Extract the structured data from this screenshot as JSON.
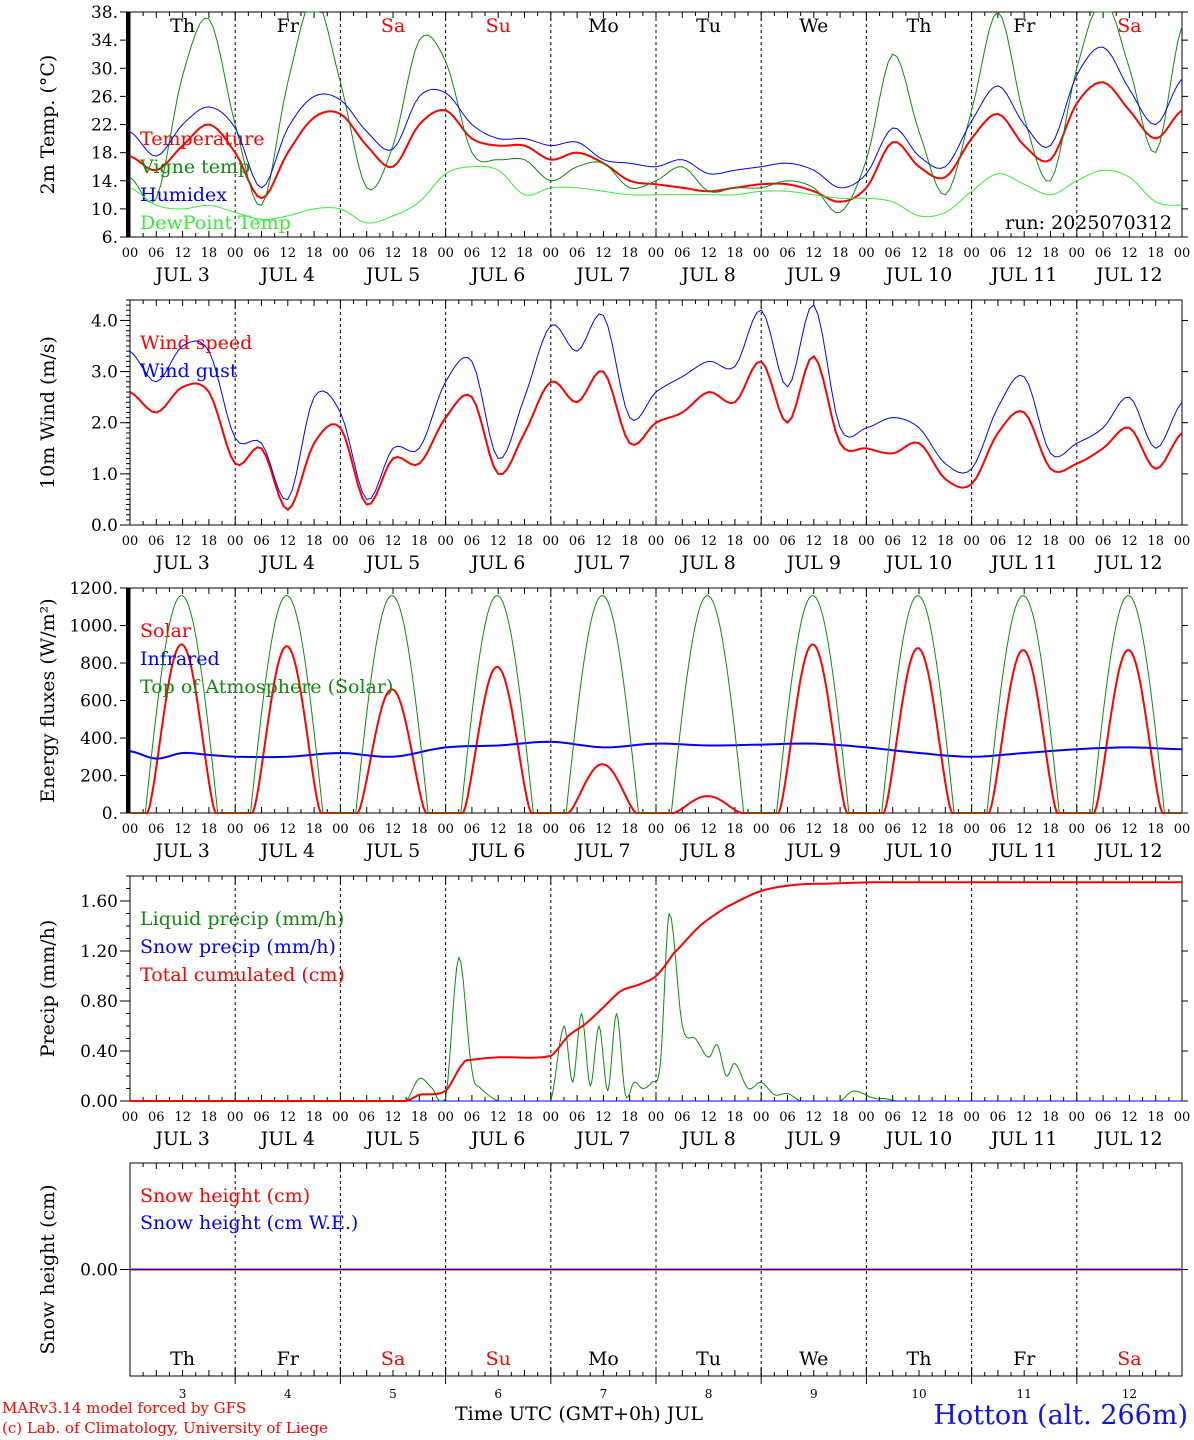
{
  "footer": {
    "model_credit": "MARv3.14 model forced by GFS",
    "lab_credit": "(c) Lab. of Climatology, University of Liege",
    "x_axis_title": "Time UTC (GMT+0h) JUL",
    "station": "Hotton (alt. 266m)"
  },
  "colors": {
    "red": "#ff0000",
    "blue": "#0000ff",
    "dark_green": "#118811",
    "light_green": "#33ee33",
    "black": "#000000"
  },
  "chart_data": [
    {
      "type": "line",
      "ylabel": "2m Temp. (°C)",
      "ylim": [
        6,
        38
      ],
      "yticks": [
        6,
        10,
        14,
        18,
        22,
        26,
        30,
        34,
        38
      ],
      "ytick_labels": [
        "6.",
        "10.",
        "14.",
        "18.",
        "22.",
        "26.",
        "30.",
        "34.",
        "38."
      ],
      "day_labels": [
        "Th",
        "Fr",
        "Sa",
        "Su",
        "Mo",
        "Tu",
        "We",
        "Th",
        "Fr",
        "Sa"
      ],
      "day_label_colors": [
        "#000000",
        "#000000",
        "#ff0000",
        "#ff0000",
        "#000000",
        "#000000",
        "#000000",
        "#000000",
        "#000000",
        "#ff0000"
      ],
      "annotation": "run: 2025070312",
      "x_hours": [
        0,
        6,
        12,
        18,
        24,
        30,
        36,
        42,
        48,
        54,
        60,
        66,
        72,
        78,
        84,
        90,
        96,
        102,
        108,
        114,
        120,
        126,
        132,
        138,
        144,
        150,
        156,
        162,
        168,
        174,
        180,
        186,
        192,
        198,
        204,
        210,
        216,
        222,
        228,
        234,
        240
      ],
      "series": [
        {
          "name": "Temperature",
          "color": "#ff0000",
          "width": 2,
          "values": [
            17.5,
            15.5,
            19,
            22,
            18,
            11.5,
            18,
            23,
            23.5,
            19,
            16,
            22,
            24,
            20,
            19,
            19,
            17,
            18,
            16.5,
            14,
            13.5,
            13,
            12.5,
            13,
            13.5,
            13.5,
            12.5,
            11,
            13,
            19.5,
            16,
            14.5,
            20,
            23.5,
            19,
            17,
            25,
            28,
            24,
            20,
            24
          ]
        },
        {
          "name": "Vigne temp",
          "color": "#118811",
          "width": 1,
          "values": [
            14.5,
            11.5,
            29,
            37,
            22,
            10.5,
            28,
            40,
            28,
            13,
            19,
            34,
            31,
            18,
            17,
            17,
            14,
            16,
            16.5,
            13,
            14,
            16,
            12.5,
            13,
            13,
            14,
            13,
            9.5,
            17,
            32,
            21,
            12,
            24,
            38,
            23,
            14,
            30,
            40,
            30,
            18,
            36
          ]
        },
        {
          "name": "Humidex",
          "color": "#0000ff",
          "width": 1,
          "values": [
            21,
            17.5,
            22,
            24.5,
            21.5,
            13,
            21.5,
            26,
            25.5,
            21,
            18.5,
            26,
            26.5,
            22,
            20,
            20,
            19,
            19.5,
            17,
            16.5,
            16,
            17,
            15,
            15.5,
            16,
            16.5,
            15.5,
            13,
            15,
            21.5,
            17.5,
            16,
            22.5,
            27.5,
            22,
            19,
            29,
            33,
            27,
            22,
            28.5
          ]
        },
        {
          "name": "DewPoint Temp",
          "color": "#33ee33",
          "width": 1,
          "values": [
            13,
            10.5,
            10,
            10.5,
            9.5,
            8.5,
            9,
            10,
            10,
            8,
            9,
            11,
            15,
            16,
            15.5,
            12,
            13,
            13,
            12.5,
            12,
            12,
            12,
            12,
            12,
            12.5,
            12.5,
            12,
            11.5,
            11.5,
            11,
            9,
            9.5,
            12.5,
            15,
            13.5,
            12,
            14,
            15.5,
            14.5,
            11,
            10.5
          ]
        }
      ]
    },
    {
      "type": "line",
      "ylabel": "10m Wind (m/s)",
      "ylim": [
        0,
        4.4
      ],
      "yticks": [
        0,
        1,
        2,
        3,
        4
      ],
      "ytick_labels": [
        "0.0",
        "1.0",
        "2.0",
        "3.0",
        "4.0"
      ],
      "x_hours": [
        0,
        6,
        12,
        18,
        24,
        30,
        36,
        42,
        48,
        54,
        60,
        66,
        72,
        78,
        84,
        90,
        96,
        102,
        108,
        114,
        120,
        126,
        132,
        138,
        144,
        150,
        156,
        162,
        168,
        174,
        180,
        186,
        192,
        198,
        204,
        210,
        216,
        222,
        228,
        234,
        240
      ],
      "series": [
        {
          "name": "Wind speed",
          "color": "#ff0000",
          "width": 2,
          "values": [
            2.6,
            2.2,
            2.7,
            2.6,
            1.2,
            1.5,
            0.3,
            1.6,
            1.9,
            0.4,
            1.3,
            1.2,
            2.1,
            2.5,
            1.0,
            1.8,
            2.8,
            2.4,
            3.0,
            1.6,
            2.0,
            2.2,
            2.6,
            2.4,
            3.2,
            2.0,
            3.3,
            1.6,
            1.5,
            1.4,
            1.6,
            0.9,
            0.8,
            1.8,
            2.2,
            1.1,
            1.2,
            1.5,
            1.9,
            1.1,
            1.8
          ]
        },
        {
          "name": "Wind gust",
          "color": "#0000ff",
          "width": 1,
          "values": [
            3.4,
            2.8,
            3.5,
            3.4,
            1.7,
            1.6,
            0.5,
            2.5,
            2.2,
            0.5,
            1.5,
            1.5,
            2.8,
            3.2,
            1.3,
            2.5,
            3.9,
            3.4,
            4.1,
            2.1,
            2.6,
            2.9,
            3.2,
            3.1,
            4.2,
            2.7,
            4.3,
            1.9,
            1.9,
            2.1,
            1.9,
            1.2,
            1.1,
            2.3,
            2.9,
            1.4,
            1.6,
            1.9,
            2.5,
            1.5,
            2.4
          ]
        }
      ]
    },
    {
      "type": "line",
      "ylabel": "Energy fluxes (W/m²)",
      "ylim": [
        0,
        1200
      ],
      "yticks": [
        0,
        200,
        400,
        600,
        800,
        1000,
        1200
      ],
      "ytick_labels": [
        "0.",
        "200.",
        "400.",
        "600.",
        "800.",
        "1000.",
        "1200."
      ],
      "diurnal_peaks": {
        "Solar": [
          900,
          890,
          660,
          780,
          260,
          90,
          900,
          880,
          870,
          870
        ],
        "Top of Atmosphere (Solar)": [
          1160,
          1160,
          1160,
          1160,
          1160,
          1160,
          1160,
          1160,
          1160,
          1160
        ]
      },
      "series": [
        {
          "name": "Solar",
          "color": "#ff0000",
          "width": 2
        },
        {
          "name": "Infrared",
          "color": "#0000ff",
          "width": 2,
          "x_hours": [
            0,
            6,
            12,
            18,
            24,
            36,
            48,
            60,
            72,
            84,
            96,
            108,
            120,
            132,
            144,
            156,
            168,
            180,
            192,
            204,
            216,
            228,
            240
          ],
          "values": [
            330,
            290,
            320,
            310,
            300,
            300,
            320,
            300,
            350,
            360,
            380,
            350,
            370,
            360,
            365,
            370,
            350,
            320,
            300,
            320,
            340,
            350,
            340
          ]
        },
        {
          "name": "Top of Atmosphere (Solar)",
          "color": "#118811",
          "width": 1
        }
      ]
    },
    {
      "type": "line",
      "ylabel": "Precip (mm/h)",
      "ylim": [
        0,
        1.8
      ],
      "yticks": [
        0,
        0.4,
        0.8,
        1.2,
        1.6
      ],
      "ytick_labels": [
        "0.00",
        "0.40",
        "0.80",
        "1.20",
        "1.60"
      ],
      "series": [
        {
          "name": "Liquid precip (mm/h)",
          "color": "#118811",
          "width": 1,
          "x_hours": [
            0,
            63,
            66,
            69,
            72,
            75,
            78,
            80,
            84,
            96,
            99,
            101,
            103,
            105,
            107,
            109,
            111,
            113,
            115,
            117,
            119,
            121,
            123,
            126,
            129,
            132,
            134,
            136,
            138,
            141,
            144,
            147,
            150,
            153,
            156,
            159,
            162,
            165,
            170,
            172,
            175,
            240
          ],
          "values": [
            0,
            0,
            0.18,
            0.1,
            0.02,
            1.15,
            0.25,
            0.1,
            0,
            0,
            0.6,
            0.15,
            0.7,
            0.12,
            0.6,
            0.08,
            0.7,
            0.05,
            0.15,
            0.1,
            0.15,
            0.3,
            1.5,
            0.6,
            0.5,
            0.35,
            0.45,
            0.2,
            0.3,
            0.1,
            0.15,
            0.05,
            0.06,
            0,
            0,
            0,
            0,
            0.08,
            0.02,
            0.02,
            0,
            0
          ]
        },
        {
          "name": "Snow precip (mm/h)",
          "color": "#0000ff",
          "width": 1,
          "x_hours": [
            0,
            240
          ],
          "values": [
            0,
            0
          ]
        },
        {
          "name": "Total cumulated (cm)",
          "color": "#ff0000",
          "width": 2,
          "x_hours": [
            0,
            63,
            66,
            72,
            76,
            78,
            84,
            96,
            100,
            104,
            108,
            112,
            116,
            120,
            124,
            130,
            136,
            144,
            152,
            160,
            170,
            240
          ],
          "values": [
            0,
            0,
            0.05,
            0.08,
            0.3,
            0.33,
            0.35,
            0.36,
            0.52,
            0.62,
            0.75,
            0.88,
            0.93,
            1.0,
            1.18,
            1.4,
            1.55,
            1.68,
            1.73,
            1.74,
            1.75,
            1.75
          ]
        }
      ]
    },
    {
      "type": "line",
      "ylabel": "Snow height (cm)",
      "yticks": [
        0
      ],
      "ytick_labels": [
        "0.00"
      ],
      "series": [
        {
          "name": "Snow height (cm)",
          "color": "#ff0000",
          "width": 2,
          "x_hours": [
            0,
            240
          ],
          "values": [
            0,
            0
          ]
        },
        {
          "name": "Snow height (cm W.E.)",
          "color": "#0000ff",
          "width": 1,
          "x_hours": [
            0,
            240
          ],
          "values": [
            0,
            0
          ]
        }
      ],
      "day_labels": [
        "Th",
        "Fr",
        "Sa",
        "Su",
        "Mo",
        "Tu",
        "We",
        "Th",
        "Fr",
        "Sa"
      ],
      "day_label_colors": [
        "#000000",
        "#000000",
        "#ff0000",
        "#ff0000",
        "#000000",
        "#000000",
        "#000000",
        "#000000",
        "#000000",
        "#ff0000"
      ],
      "day_numbers": [
        "3",
        "4",
        "5",
        "6",
        "7",
        "8",
        "9",
        "10",
        "11",
        "12"
      ]
    }
  ],
  "x_axis": {
    "hour_tick_labels": [
      "00",
      "06",
      "12",
      "18"
    ],
    "final_tick_label": "00",
    "date_labels": [
      "JUL  3",
      "JUL  4",
      "JUL  5",
      "JUL  6",
      "JUL  7",
      "JUL  8",
      "JUL  9",
      "JUL 10",
      "JUL 11",
      "JUL 12"
    ]
  }
}
